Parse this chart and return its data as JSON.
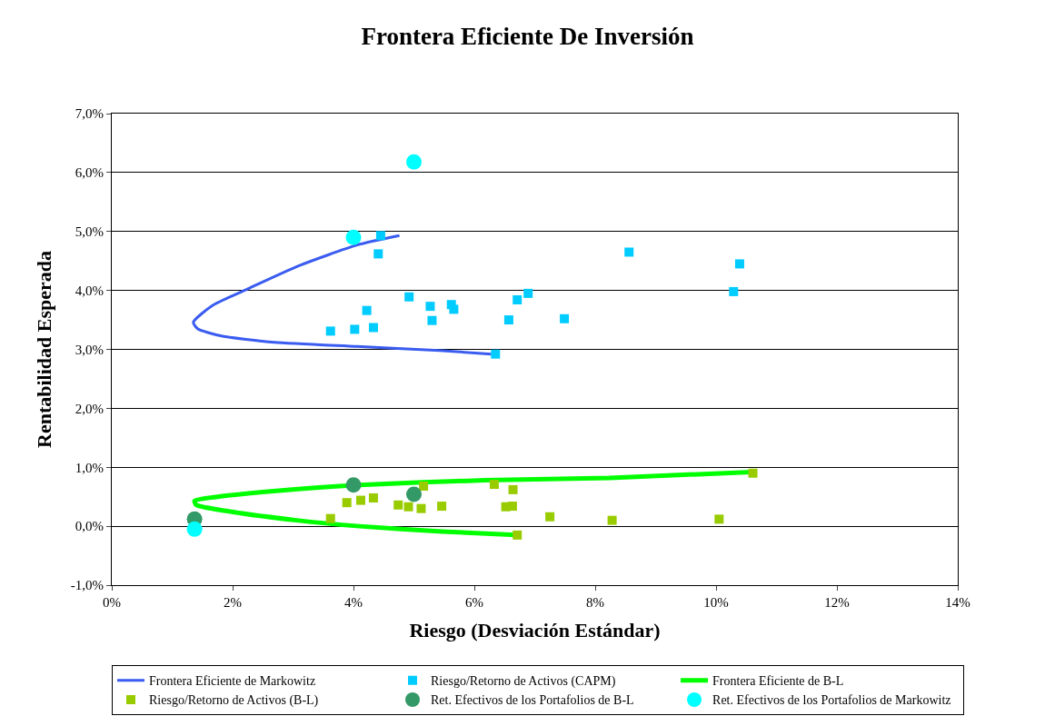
{
  "chart_data": {
    "type": "scatter",
    "title": "Frontera Eficiente De Inversión",
    "xlabel": "Riesgo (Desviación Estándar)",
    "ylabel": "Rentabilidad Esperada",
    "xlim": [
      0,
      14
    ],
    "ylim": [
      -1,
      7
    ],
    "xticks": [
      {
        "value": 0,
        "label": "0%"
      },
      {
        "value": 2,
        "label": "2%"
      },
      {
        "value": 4,
        "label": "4%"
      },
      {
        "value": 6,
        "label": "6%"
      },
      {
        "value": 8,
        "label": "8%"
      },
      {
        "value": 10,
        "label": "10%"
      },
      {
        "value": 12,
        "label": "12%"
      },
      {
        "value": 14,
        "label": "14%"
      }
    ],
    "yticks": [
      {
        "value": -1,
        "label": "-1,0%"
      },
      {
        "value": 0,
        "label": "0,0%"
      },
      {
        "value": 1,
        "label": "1,0%"
      },
      {
        "value": 2,
        "label": "2,0%"
      },
      {
        "value": 3,
        "label": "3,0%"
      },
      {
        "value": 4,
        "label": "4,0%"
      },
      {
        "value": 5,
        "label": "5,0%"
      },
      {
        "value": 6,
        "label": "6,0%"
      },
      {
        "value": 7,
        "label": "7,0%"
      }
    ],
    "grid": "y",
    "legend": "bottom",
    "series": [
      {
        "name": "Frontera Eficiente de Markowitz",
        "type": "line",
        "marker": "none",
        "color": "#3a5cf0",
        "x": [
          4.76,
          4.06,
          3.1,
          2.28,
          1.66,
          1.35,
          1.42,
          1.8,
          2.69,
          4.06,
          5.42,
          6.28
        ],
        "values": [
          4.93,
          4.77,
          4.42,
          4.04,
          3.74,
          3.46,
          3.35,
          3.23,
          3.12,
          3.05,
          2.98,
          2.92
        ]
      },
      {
        "name": "Riesgo/Retorno de Activos (CAPM)",
        "marker": "square",
        "color": "#00ccff",
        "x": [
          4.45,
          4.41,
          3.62,
          4.02,
          4.33,
          4.22,
          4.92,
          5.27,
          5.3,
          5.62,
          5.66,
          6.57,
          6.71,
          6.89,
          7.49,
          8.56,
          10.39,
          10.29,
          6.35
        ],
        "values": [
          4.93,
          4.62,
          3.31,
          3.34,
          3.37,
          3.66,
          3.89,
          3.73,
          3.49,
          3.76,
          3.68,
          3.5,
          3.84,
          3.95,
          3.52,
          4.65,
          4.45,
          3.98,
          2.92
        ]
      },
      {
        "name": "Frontera Eficiente de B-L",
        "type": "line",
        "marker": "none",
        "color": "#00ff00",
        "x": [
          10.59,
          8.24,
          6.17,
          4.1,
          2.72,
          1.75,
          1.37,
          1.4,
          1.89,
          3.06,
          4.1,
          5.47,
          6.69
        ],
        "values": [
          0.92,
          0.82,
          0.78,
          0.7,
          0.6,
          0.5,
          0.43,
          0.36,
          0.26,
          0.1,
          0.0,
          -0.09,
          -0.15
        ]
      },
      {
        "name": "Riesgo/Retorno de Activos (B-L)",
        "marker": "square",
        "color": "#99cc00",
        "x": [
          3.62,
          3.89,
          4.12,
          4.33,
          4.74,
          4.91,
          5.12,
          5.16,
          5.46,
          6.33,
          6.64,
          6.52,
          6.63,
          6.71,
          7.25,
          8.28,
          10.05,
          10.61
        ],
        "values": [
          0.13,
          0.4,
          0.44,
          0.48,
          0.36,
          0.33,
          0.3,
          0.68,
          0.34,
          0.71,
          0.62,
          0.33,
          0.34,
          -0.15,
          0.16,
          0.1,
          0.12,
          0.9
        ]
      },
      {
        "name": "Ret. Efectivos de los Portafolios de B-L",
        "marker": "circle",
        "color": "#339966",
        "x": [
          1.37,
          4.0,
          5.0
        ],
        "values": [
          0.12,
          0.7,
          0.54
        ]
      },
      {
        "name": "Ret. Efectivos de los Portafolios de Markowitz",
        "marker": "circle",
        "color": "#00ffff",
        "x": [
          1.37,
          4.0,
          5.0
        ],
        "values": [
          -0.05,
          4.9,
          6.18
        ]
      }
    ]
  }
}
